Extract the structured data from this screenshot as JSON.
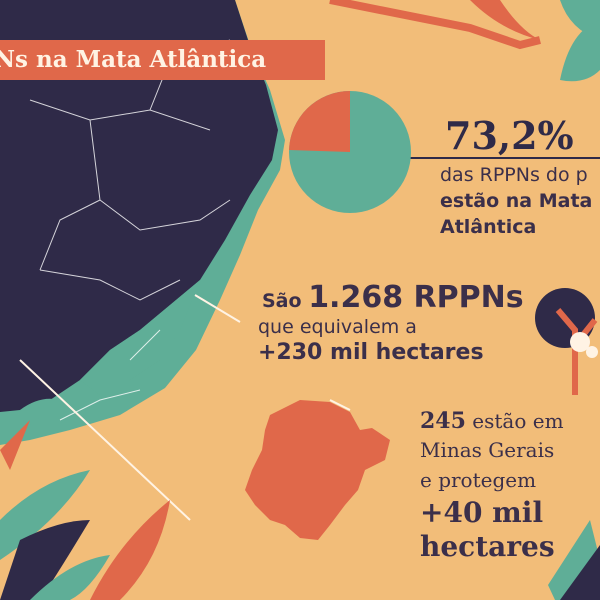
{
  "title": "Ns na Mata Atlântica",
  "stat_share": {
    "percent": "73,2%",
    "line1": "das RPPNs do p",
    "line2": "estão na Mata",
    "line3": "Atlântica",
    "pie_fraction": 0.732
  },
  "stat_count": {
    "prefix": "São",
    "number": "1.268 RPPNs",
    "line2": "que equivalem a",
    "line3": "+230 mil hectares"
  },
  "stat_minas": {
    "number": "245",
    "line1_suffix": "estão em",
    "line2": "Minas Gerais",
    "line3": "e protegem",
    "line4": "+40 mil",
    "line5": "hectares"
  },
  "colors": {
    "background": "#f2bd79",
    "navy": "#2f2a48",
    "teal": "#5fae97",
    "coral": "#e0684a"
  }
}
